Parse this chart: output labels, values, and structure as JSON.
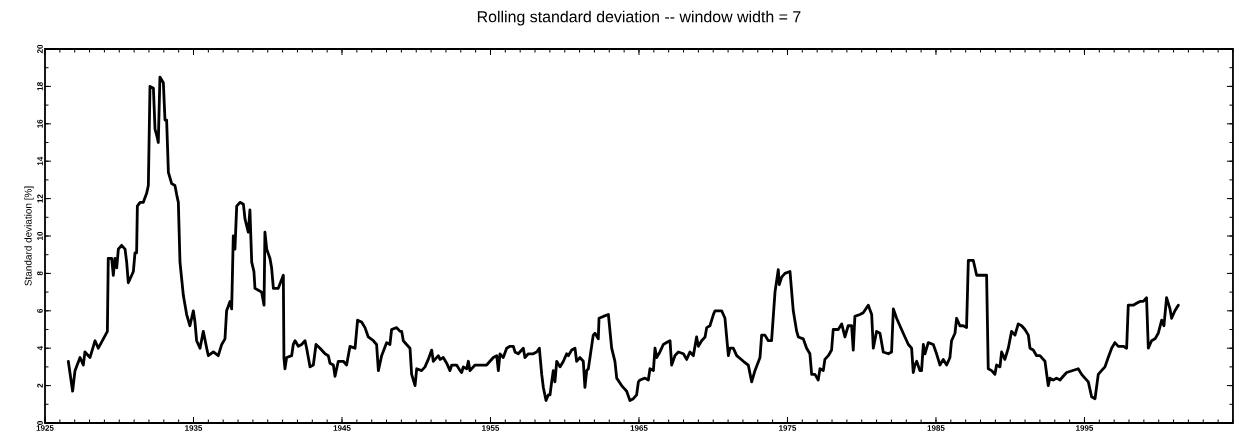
{
  "chart_data": {
    "type": "line",
    "title": "Rolling standard deviation -- window width = 7",
    "ylabel": "Standard deviation [%]",
    "x": [
      1926.57,
      1926.86,
      1927.02,
      1927.36,
      1927.58,
      1927.69,
      1928.03,
      1928.37,
      1928.59,
      1928.93,
      1929.2,
      1929.26,
      1929.49,
      1929.6,
      1929.71,
      1929.83,
      1929.94,
      1930.16,
      1930.39,
      1930.5,
      1930.61,
      1930.84,
      1930.95,
      1931.06,
      1931.17,
      1931.22,
      1931.4,
      1931.62,
      1931.85,
      1931.96,
      1932.07,
      1932.3,
      1932.41,
      1932.52,
      1932.63,
      1932.74,
      1932.97,
      1933.08,
      1933.19,
      1933.31,
      1933.53,
      1933.75,
      1933.87,
      1933.98,
      1934.09,
      1934.32,
      1934.54,
      1934.76,
      1934.99,
      1935.1,
      1935.21,
      1935.44,
      1935.66,
      1935.89,
      1936.0,
      1936.34,
      1936.67,
      1936.9,
      1937.12,
      1937.23,
      1937.46,
      1937.57,
      1937.68,
      1937.79,
      1937.91,
      1938.13,
      1938.36,
      1938.47,
      1938.69,
      1938.8,
      1938.92,
      1939.07,
      1939.14,
      1939.37,
      1939.59,
      1939.75,
      1939.81,
      1939.93,
      1940.15,
      1940.26,
      1940.38,
      1940.71,
      1941.05,
      1941.09,
      1941.16,
      1941.27,
      1941.61,
      1941.72,
      1941.84,
      1942.06,
      1942.28,
      1942.51,
      1942.62,
      1942.85,
      1943.07,
      1943.25,
      1943.52,
      1943.86,
      1944.08,
      1944.19,
      1944.42,
      1944.53,
      1944.75,
      1945.09,
      1945.31,
      1945.54,
      1945.88,
      1946.05,
      1946.32,
      1946.55,
      1946.77,
      1947.11,
      1947.33,
      1947.45,
      1947.67,
      1948.01,
      1948.23,
      1948.34,
      1948.68,
      1948.91,
      1949.02,
      1949.13,
      1949.35,
      1949.58,
      1949.69,
      1949.92,
      1950.03,
      1950.36,
      1950.59,
      1950.81,
      1951.04,
      1951.15,
      1951.49,
      1951.6,
      1951.82,
      1952.05,
      1952.27,
      1952.39,
      1952.72,
      1952.95,
      1953.06,
      1953.17,
      1953.4,
      1953.51,
      1953.62,
      1953.96,
      1954.74,
      1955.19,
      1955.42,
      1955.53,
      1955.64,
      1955.86,
      1956.09,
      1956.31,
      1956.54,
      1956.65,
      1956.87,
      1957.21,
      1957.32,
      1957.55,
      1957.88,
      1958.11,
      1958.29,
      1958.45,
      1958.56,
      1958.74,
      1958.89,
      1959.01,
      1959.12,
      1959.23,
      1959.34,
      1959.46,
      1959.68,
      1959.91,
      1960.13,
      1960.24,
      1960.47,
      1960.69,
      1960.8,
      1961.03,
      1961.25,
      1961.36,
      1961.48,
      1961.59,
      1961.92,
      1962.04,
      1962.26,
      1962.31,
      1962.6,
      1962.94,
      1963.16,
      1963.38,
      1963.5,
      1963.83,
      1964.06,
      1964.17,
      1964.39,
      1964.62,
      1964.84,
      1964.96,
      1965.07,
      1965.4,
      1965.63,
      1965.74,
      1965.97,
      1966.08,
      1966.19,
      1966.41,
      1966.64,
      1966.86,
      1967.09,
      1967.2,
      1967.42,
      1967.65,
      1967.99,
      1968.21,
      1968.43,
      1968.66,
      1968.88,
      1969.0,
      1969.22,
      1969.45,
      1969.56,
      1969.78,
      1970.01,
      1970.12,
      1970.57,
      1970.79,
      1971.02,
      1971.13,
      1971.35,
      1971.58,
      1972.03,
      1972.36,
      1972.59,
      1972.81,
      1973.15,
      1973.26,
      1973.48,
      1973.71,
      1973.93,
      1974.16,
      1974.38,
      1974.45,
      1974.61,
      1974.83,
      1975.17,
      1975.39,
      1975.62,
      1975.73,
      1976.06,
      1976.29,
      1976.51,
      1976.63,
      1976.85,
      1977.07,
      1977.19,
      1977.41,
      1977.52,
      1977.75,
      1977.97,
      1978.08,
      1978.42,
      1978.65,
      1978.87,
      1979.09,
      1979.32,
      1979.43,
      1979.54,
      1979.88,
      1980.1,
      1980.44,
      1980.67,
      1980.78,
      1981.0,
      1981.23,
      1981.45,
      1981.79,
      1982.01,
      1982.13,
      1982.35,
      1982.57,
      1982.91,
      1983.14,
      1983.36,
      1983.47,
      1983.58,
      1983.7,
      1983.92,
      1984.03,
      1984.15,
      1984.26,
      1984.48,
      1984.82,
      1985.04,
      1985.27,
      1985.49,
      1985.72,
      1985.94,
      1986.05,
      1986.28,
      1986.39,
      1986.61,
      1986.84,
      1987.06,
      1987.18,
      1987.51,
      1987.74,
      1988.07,
      1988.41,
      1988.52,
      1988.75,
      1988.97,
      1989.08,
      1989.31,
      1989.42,
      1989.64,
      1989.87,
      1990.09,
      1990.32,
      1990.54,
      1990.77,
      1990.99,
      1991.22,
      1991.33,
      1991.55,
      1991.78,
      1992.0,
      1992.34,
      1992.56,
      1992.67,
      1992.9,
      1993.12,
      1993.35,
      1993.57,
      1993.8,
      1994.58,
      1994.81,
      1995.03,
      1995.26,
      1995.48,
      1995.71,
      1995.93,
      1996.15,
      1996.38,
      1996.6,
      1996.83,
      1997.05,
      1997.28,
      1997.61,
      1997.84,
      1997.95,
      1998.29,
      1998.51,
      1998.74,
      1998.96,
      1999.18,
      1999.3,
      1999.52,
      1999.75,
      1999.97,
      2000.2,
      2000.35,
      2000.53,
      2000.76,
      2000.87,
      2001.09,
      2001.32
    ],
    "series": [
      {
        "color": "#000000",
        "values": [
          3.3,
          1.7,
          2.8,
          3.5,
          3.1,
          3.8,
          3.5,
          4.4,
          4.0,
          4.5,
          4.9,
          8.8,
          8.8,
          7.9,
          8.8,
          8.3,
          9.3,
          9.5,
          9.3,
          8.6,
          7.5,
          7.9,
          8.1,
          9.1,
          9.1,
          11.6,
          11.8,
          11.8,
          12.3,
          12.7,
          18.0,
          17.9,
          15.7,
          15.4,
          15.0,
          18.5,
          18.2,
          16.2,
          16.2,
          13.4,
          12.8,
          12.7,
          12.2,
          11.8,
          8.6,
          6.8,
          5.8,
          5.2,
          6.0,
          5.4,
          4.4,
          4.0,
          4.9,
          4.0,
          3.6,
          3.8,
          3.6,
          4.2,
          4.5,
          6.0,
          6.5,
          6.1,
          10.0,
          9.3,
          11.6,
          11.8,
          11.7,
          10.9,
          10.2,
          11.4,
          8.6,
          8.1,
          7.2,
          7.1,
          7.0,
          6.3,
          10.2,
          9.3,
          8.8,
          8.3,
          7.2,
          7.2,
          7.9,
          3.5,
          2.9,
          3.5,
          3.6,
          4.2,
          4.4,
          4.1,
          4.2,
          4.4,
          4.0,
          3.0,
          3.1,
          4.2,
          4.0,
          3.7,
          3.6,
          3.2,
          3.1,
          2.5,
          3.3,
          3.3,
          3.1,
          4.1,
          4.0,
          5.5,
          5.4,
          5.1,
          4.6,
          4.4,
          4.2,
          2.8,
          3.6,
          4.3,
          4.2,
          5.0,
          5.1,
          4.9,
          4.9,
          4.4,
          4.2,
          4.0,
          2.6,
          2.0,
          2.9,
          2.8,
          3.0,
          3.4,
          3.9,
          3.3,
          3.6,
          3.4,
          3.5,
          3.2,
          2.8,
          3.1,
          3.1,
          2.8,
          2.7,
          3.0,
          2.9,
          3.3,
          2.8,
          3.1,
          3.1,
          3.5,
          3.6,
          2.8,
          3.7,
          3.5,
          4.0,
          4.1,
          4.1,
          3.8,
          3.7,
          4.0,
          3.5,
          3.7,
          3.7,
          3.8,
          4.0,
          2.6,
          1.9,
          1.2,
          1.5,
          1.5,
          2.2,
          2.8,
          2.2,
          3.3,
          3.0,
          3.3,
          3.7,
          3.6,
          3.9,
          4.0,
          3.3,
          3.5,
          3.3,
          1.9,
          2.8,
          2.9,
          4.7,
          4.8,
          4.5,
          5.6,
          5.7,
          5.8,
          4.0,
          3.3,
          2.4,
          2.0,
          1.8,
          1.7,
          1.2,
          1.3,
          1.5,
          2.2,
          2.3,
          2.4,
          2.3,
          2.9,
          2.8,
          4.0,
          3.5,
          3.8,
          4.2,
          4.3,
          4.4,
          3.1,
          3.6,
          3.8,
          3.7,
          3.4,
          3.8,
          3.6,
          4.6,
          4.1,
          4.4,
          4.6,
          5.1,
          5.2,
          5.8,
          6.0,
          6.0,
          5.6,
          3.6,
          4.0,
          4.0,
          3.6,
          3.3,
          3.1,
          2.2,
          2.8,
          3.5,
          4.7,
          4.7,
          4.4,
          4.4,
          7.0,
          8.2,
          7.4,
          7.8,
          8.0,
          8.1,
          6.0,
          4.9,
          4.6,
          4.5,
          4.0,
          3.7,
          2.6,
          2.6,
          2.3,
          2.9,
          2.8,
          3.4,
          3.6,
          3.9,
          5.0,
          5.0,
          5.3,
          4.6,
          5.2,
          5.2,
          3.9,
          5.7,
          5.8,
          5.9,
          6.3,
          5.8,
          4.0,
          4.9,
          4.8,
          3.8,
          3.7,
          3.8,
          6.1,
          5.6,
          5.2,
          4.6,
          4.2,
          4.0,
          2.7,
          3.1,
          3.3,
          2.8,
          2.8,
          4.2,
          3.7,
          4.3,
          4.2,
          3.7,
          3.1,
          3.4,
          3.1,
          3.5,
          4.4,
          4.8,
          5.6,
          5.2,
          5.2,
          5.1,
          8.7,
          8.7,
          7.9,
          7.9,
          7.9,
          2.9,
          2.8,
          2.6,
          3.1,
          3.0,
          3.8,
          3.4,
          4.0,
          4.9,
          4.7,
          5.3,
          5.2,
          5.0,
          4.7,
          4.0,
          3.9,
          3.6,
          3.6,
          3.3,
          2.0,
          2.4,
          2.3,
          2.4,
          2.3,
          2.5,
          2.7,
          2.9,
          2.6,
          2.4,
          2.2,
          1.4,
          1.3,
          2.6,
          2.8,
          3.0,
          3.5,
          4.0,
          4.3,
          4.1,
          4.1,
          4.0,
          6.3,
          6.3,
          6.4,
          6.5,
          6.5,
          6.7,
          4.0,
          4.4,
          4.5,
          4.8,
          5.5,
          5.2,
          6.7,
          6.1,
          5.6,
          6.0,
          6.3
        ]
      }
    ],
    "xlim": [
      1925,
      2005
    ],
    "xticks": [
      1925,
      1935,
      1945,
      1955,
      1965,
      1975,
      1985,
      1995
    ],
    "ylim": [
      0,
      20
    ],
    "yticks": [
      0,
      2,
      4,
      6,
      8,
      10,
      12,
      14,
      16,
      18,
      20
    ],
    "marker": "none",
    "line_style": "solid"
  }
}
